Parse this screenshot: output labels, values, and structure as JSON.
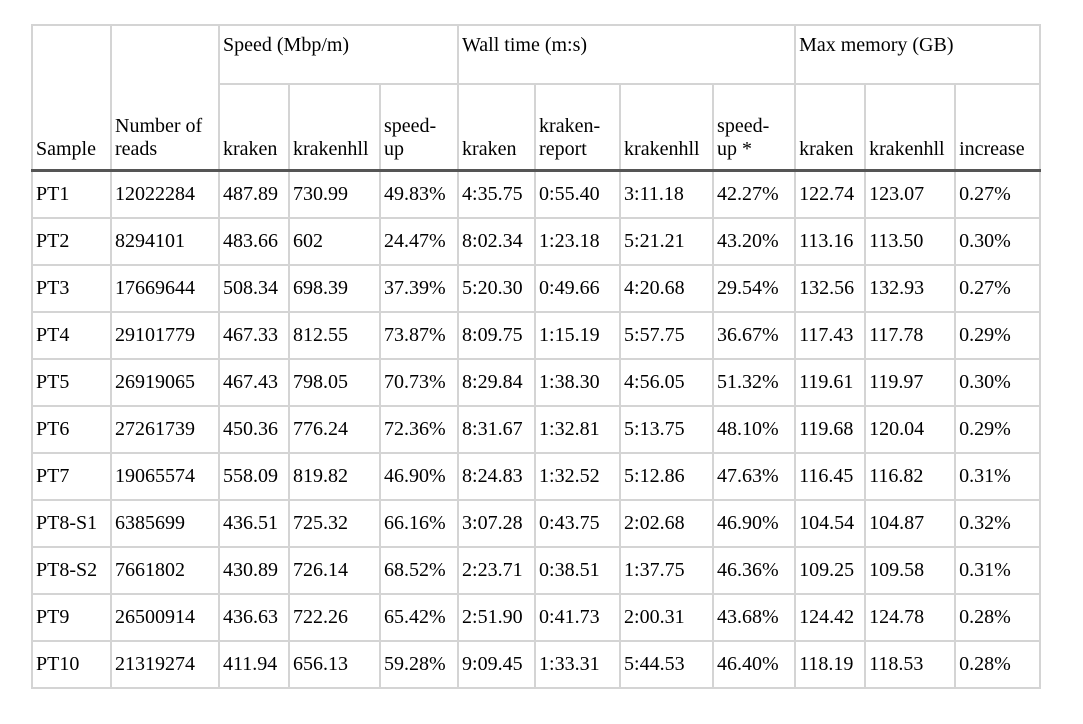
{
  "header": {
    "sample": "Sample",
    "num_reads": "Number of reads",
    "groups": {
      "speed": "Speed (Mbp/m)",
      "wall": "Wall time (m:s)",
      "memory": "Max memory (GB)"
    },
    "sub": {
      "speed_kraken": "kraken",
      "speed_krakenhll": "krakenhll",
      "speed_up": "speed-up",
      "wall_kraken": "kraken",
      "wall_kraken_report": "kraken-report",
      "wall_krakenhll": "krakenhll",
      "wall_speed_up": "speed-up *",
      "mem_kraken": "kraken",
      "mem_krakenhll": "krakenhll",
      "mem_increase": "increase"
    }
  },
  "rows": [
    [
      "PT1",
      "12022284",
      "487.89",
      "730.99",
      "49.83%",
      "4:35.75",
      "0:55.40",
      "3:11.18",
      "42.27%",
      "122.74",
      "123.07",
      "0.27%"
    ],
    [
      "PT2",
      "8294101",
      "483.66",
      "602",
      "24.47%",
      "8:02.34",
      "1:23.18",
      "5:21.21",
      "43.20%",
      "113.16",
      "113.50",
      "0.30%"
    ],
    [
      "PT3",
      "17669644",
      "508.34",
      "698.39",
      "37.39%",
      "5:20.30",
      "0:49.66",
      "4:20.68",
      "29.54%",
      "132.56",
      "132.93",
      "0.27%"
    ],
    [
      "PT4",
      "29101779",
      "467.33",
      "812.55",
      "73.87%",
      "8:09.75",
      "1:15.19",
      "5:57.75",
      "36.67%",
      "117.43",
      "117.78",
      "0.29%"
    ],
    [
      "PT5",
      "26919065",
      "467.43",
      "798.05",
      "70.73%",
      "8:29.84",
      "1:38.30",
      "4:56.05",
      "51.32%",
      "119.61",
      "119.97",
      "0.30%"
    ],
    [
      "PT6",
      "27261739",
      "450.36",
      "776.24",
      "72.36%",
      "8:31.67",
      "1:32.81",
      "5:13.75",
      "48.10%",
      "119.68",
      "120.04",
      "0.29%"
    ],
    [
      "PT7",
      "19065574",
      "558.09",
      "819.82",
      "46.90%",
      "8:24.83",
      "1:32.52",
      "5:12.86",
      "47.63%",
      "116.45",
      "116.82",
      "0.31%"
    ],
    [
      "PT8-S1",
      "6385699",
      "436.51",
      "725.32",
      "66.16%",
      "3:07.28",
      "0:43.75",
      "2:02.68",
      "46.90%",
      "104.54",
      "104.87",
      "0.32%"
    ],
    [
      "PT8-S2",
      "7661802",
      "430.89",
      "726.14",
      "68.52%",
      "2:23.71",
      "0:38.51",
      "1:37.75",
      "46.36%",
      "109.25",
      "109.58",
      "0.31%"
    ],
    [
      "PT9",
      "26500914",
      "436.63",
      "722.26",
      "65.42%",
      "2:51.90",
      "0:41.73",
      "2:00.31",
      "43.68%",
      "124.42",
      "124.78",
      "0.28%"
    ],
    [
      "PT10",
      "21319274",
      "411.94",
      "656.13",
      "59.28%",
      "9:09.45",
      "1:33.31",
      "5:44.53",
      "46.40%",
      "118.19",
      "118.53",
      "0.28%"
    ]
  ]
}
